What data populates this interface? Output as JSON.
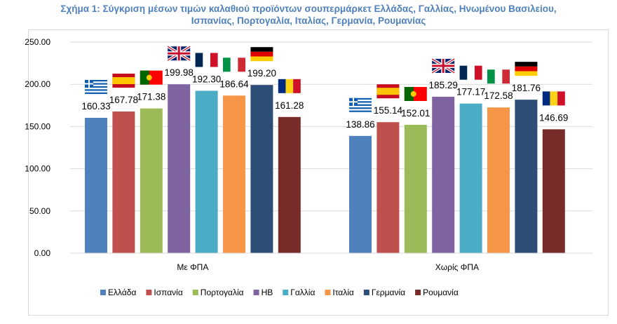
{
  "title_line1": "Σχήμα 1: Σύγκριση μέσων τιμών καλαθιού προϊόντων σουπερμάρκετ Ελλάδας, Γαλλίας, Ηνωμένου Βασιλείου,",
  "title_line2": "Ισπανίας, Πορτογαλία, Ιταλίας, Γερμανία, Ρουμανίας",
  "chart_data": {
    "type": "bar",
    "title": "Σχήμα 1: Σύγκριση μέσων τιμών καλαθιού προϊόντων σουπερμάρκετ Ελλάδας, Γαλλίας, Ηνωμένου Βασιλείου, Ισπανίας, Πορτογαλία, Ιταλίας, Γερμανία, Ρουμανίας",
    "categories": [
      "Με ΦΠΑ",
      "Χωρίς ΦΠΑ"
    ],
    "ylim": [
      0,
      250
    ],
    "yticks": [
      "0.00",
      "50.00",
      "100.00",
      "150.00",
      "200.00",
      "250.00"
    ],
    "grid": true,
    "legend_position": "bottom",
    "series": [
      {
        "name": "Ελλάδα",
        "values": [
          160.33,
          138.86
        ],
        "color": "#4f81bd",
        "flag": "greece"
      },
      {
        "name": "Ισπανία",
        "values": [
          167.78,
          155.14
        ],
        "color": "#c0504d",
        "flag": "spain"
      },
      {
        "name": "Πορτογαλία",
        "values": [
          171.38,
          152.01
        ],
        "color": "#9bbb59",
        "flag": "portugal"
      },
      {
        "name": "ΗΒ",
        "values": [
          199.98,
          185.29
        ],
        "color": "#8064a2",
        "flag": "uk"
      },
      {
        "name": "Γαλλία",
        "values": [
          192.3,
          177.17
        ],
        "color": "#4bacc6",
        "flag": "france"
      },
      {
        "name": "Ιταλία",
        "values": [
          186.64,
          172.58
        ],
        "color": "#f79646",
        "flag": "italy"
      },
      {
        "name": "Γερμανία",
        "values": [
          199.2,
          181.76
        ],
        "color": "#2c4d75",
        "flag": "germany"
      },
      {
        "name": "Ρουμανία",
        "values": [
          161.28,
          146.69
        ],
        "color": "#772c2a",
        "flag": "romania"
      }
    ]
  }
}
